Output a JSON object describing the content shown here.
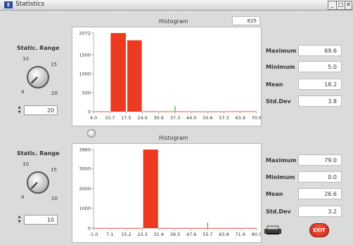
{
  "window": {
    "title": "Statistics",
    "icon": "app-icon",
    "min": "_",
    "max": "□",
    "close": "✕"
  },
  "top": {
    "static_range_label": "Static. Range",
    "knob_ticks": [
      "10",
      "15",
      "4",
      "20"
    ],
    "range_value": "20",
    "hist_title": "Histogram",
    "hist_box": "825",
    "stats": [
      {
        "label": "Maximum",
        "value": "69.6"
      },
      {
        "label": "Minimum",
        "value": "5.0"
      },
      {
        "label": "Mean",
        "value": "18.2"
      },
      {
        "label": "Std.Dev",
        "value": "3.8"
      }
    ]
  },
  "bottom": {
    "static_range_label": "Static. Range",
    "knob_ticks": [
      "10",
      "15",
      "4",
      "20"
    ],
    "range_value": "10",
    "hist_title": "Histogram",
    "stats": [
      {
        "label": "Maximum",
        "value": "79.0"
      },
      {
        "label": "Minimum",
        "value": "0.0"
      },
      {
        "label": "Mean",
        "value": "26.6"
      },
      {
        "label": "Std.Dev",
        "value": "3.2"
      }
    ]
  },
  "actions": {
    "exit_label": "EXIT"
  },
  "colors": {
    "bar": "#ef3a22",
    "accent_green": "#3a8a2a"
  },
  "chart_data": [
    {
      "type": "bar",
      "title": "Histogram",
      "ylim": [
        0,
        2072
      ],
      "yticks": [
        "2072",
        "1500",
        "1000",
        "500",
        "0"
      ],
      "xticks": [
        "4.0",
        "10.7",
        "17.5",
        "24.0",
        "30.6",
        "37.3",
        "44.0",
        "50.6",
        "57.3",
        "63.9",
        "70.6"
      ],
      "bins": [
        {
          "x0": 4.0,
          "x1": 10.7,
          "value": 5
        },
        {
          "x0": 10.7,
          "x1": 17.5,
          "value": 2072
        },
        {
          "x0": 17.5,
          "x1": 24.0,
          "value": 1880
        },
        {
          "x0": 24.0,
          "x1": 30.6,
          "value": 8
        },
        {
          "x0": 30.6,
          "x1": 37.3,
          "value": 6
        },
        {
          "x0": 37.3,
          "x1": 44.0,
          "value": 5
        },
        {
          "x0": 44.0,
          "x1": 50.6,
          "value": 4
        },
        {
          "x0": 50.6,
          "x1": 57.3,
          "value": 4
        },
        {
          "x0": 57.3,
          "x1": 63.9,
          "value": 6
        },
        {
          "x0": 63.9,
          "x1": 70.6,
          "value": 8
        }
      ],
      "marker_x": 37.3
    },
    {
      "type": "bar",
      "title": "Histogram",
      "ylim": [
        0,
        3960
      ],
      "yticks": [
        "3960",
        "3000",
        "2000",
        "1000",
        "0"
      ],
      "xticks": [
        "-1.0",
        "7.1",
        "15.2",
        "23.3",
        "31.4",
        "39.5",
        "47.6",
        "55.7",
        "63.8",
        "71.9",
        "80.0"
      ],
      "bins": [
        {
          "x0": -1.0,
          "x1": 7.1,
          "value": 5
        },
        {
          "x0": 7.1,
          "x1": 15.2,
          "value": 5
        },
        {
          "x0": 15.2,
          "x1": 23.3,
          "value": 5
        },
        {
          "x0": 23.3,
          "x1": 31.4,
          "value": 3960
        },
        {
          "x0": 31.4,
          "x1": 39.5,
          "value": 5
        },
        {
          "x0": 39.5,
          "x1": 47.6,
          "value": 5
        },
        {
          "x0": 47.6,
          "x1": 55.7,
          "value": 5
        },
        {
          "x0": 55.7,
          "x1": 63.8,
          "value": 5
        },
        {
          "x0": 63.8,
          "x1": 71.9,
          "value": 5
        },
        {
          "x0": 71.9,
          "x1": 80.0,
          "value": 5
        }
      ],
      "marker_x": 55.7
    }
  ]
}
